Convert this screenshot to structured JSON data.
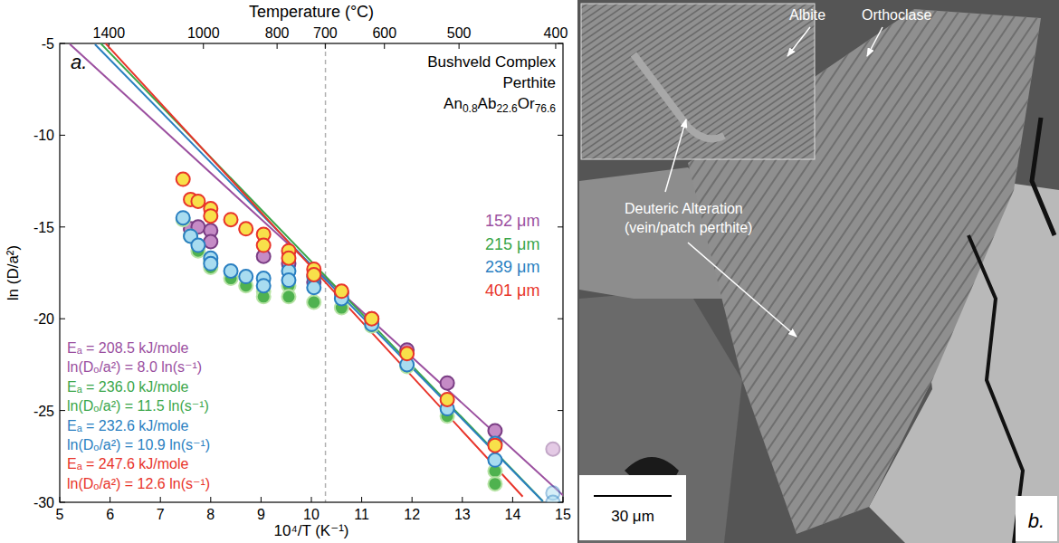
{
  "chart_data": {
    "type": "scatter",
    "panel": "a.",
    "x_label": "10⁴/T (K⁻¹)",
    "y_label": "ln (D/a²)",
    "x2_label": "Temperature (°C)",
    "xlim": [
      5,
      15
    ],
    "xticks": [
      5,
      6,
      7,
      8,
      9,
      10,
      11,
      12,
      13,
      14,
      15
    ],
    "ylim": [
      -30,
      -5
    ],
    "yticks": [
      -30,
      -25,
      -20,
      -15,
      -10,
      -5
    ],
    "x2ticks": [
      {
        "value": 5.977,
        "label": "1400"
      },
      {
        "value": 7.855,
        "label": "1000"
      },
      {
        "value": 9.319,
        "label": "800"
      },
      {
        "value": 10.276,
        "label": "700"
      },
      {
        "value": 11.452,
        "label": "600"
      },
      {
        "value": 12.934,
        "label": "500"
      },
      {
        "value": 14.855,
        "label": "400"
      }
    ],
    "vlines": [
      10.28
    ],
    "annotations": [
      "Bushveld Complex",
      "Perthite",
      "An0.8Ab22.6Or76.6"
    ],
    "legend": "right",
    "grid": false,
    "series": [
      {
        "name": "152 μm",
        "color": "#9b4f9f",
        "marker": "circle",
        "x": [
          7.6,
          7.75,
          8.0,
          8.0,
          9.05,
          9.55,
          10.05,
          10.6,
          11.2,
          11.9,
          12.7,
          13.65,
          14.8
        ],
        "values": [
          -15.1,
          -15.0,
          -15.2,
          -15.8,
          -16.6,
          -17.0,
          -18.0,
          -18.6,
          -20.0,
          -21.7,
          -23.5,
          -26.1,
          -27.1
        ],
        "fit_included": [
          true,
          true,
          true,
          true,
          true,
          true,
          true,
          true,
          true,
          true,
          true,
          true,
          false
        ],
        "fit_x": [
          5.2,
          15
        ],
        "fit_y": [
          -5.04,
          -29.62
        ],
        "fit_label": [
          "Eₐ = 208.5 kJ/mole",
          "ln(Dₒ/a²) = 8.0 ln(s⁻¹)"
        ]
      },
      {
        "name": "215 μm",
        "color": "#3aa64a",
        "marker": "circle",
        "x": [
          7.45,
          7.6,
          7.75,
          8.0,
          8.0,
          8.4,
          8.7,
          9.05,
          9.05,
          9.55,
          9.55,
          10.05,
          10.6,
          11.2,
          11.9,
          12.7,
          13.65,
          13.65
        ],
        "values": [
          -14.6,
          -15.5,
          -16.3,
          -16.9,
          -17.2,
          -17.8,
          -18.2,
          -18.5,
          -18.8,
          -18.2,
          -18.8,
          -19.1,
          -19.4,
          -20.4,
          -22.6,
          -25.3,
          -28.3,
          -29.0
        ],
        "fit_included": [
          true,
          true,
          true,
          true,
          true,
          true,
          true,
          true,
          true,
          true,
          true,
          true,
          true,
          true,
          true,
          true,
          true,
          true
        ],
        "fit_x": [
          5.8,
          14.6
        ],
        "fit_y": [
          -4.96,
          -29.94
        ],
        "fit_label": [
          "Eₐ = 236.0 kJ/mole",
          "ln(Dₒ/a²) = 11.5 ln(s⁻¹)"
        ]
      },
      {
        "name": "239 μm",
        "color": "#2a7fc1",
        "marker": "circle",
        "x": [
          7.45,
          7.6,
          7.75,
          8.0,
          8.0,
          8.4,
          8.7,
          9.05,
          9.05,
          9.55,
          9.55,
          10.05,
          10.05,
          10.6,
          11.2,
          11.9,
          12.7,
          13.65,
          13.65,
          14.8,
          14.8
        ],
        "values": [
          -14.5,
          -15.5,
          -16.0,
          -16.7,
          -17.0,
          -17.4,
          -17.7,
          -17.8,
          -18.2,
          -17.4,
          -17.9,
          -17.7,
          -18.3,
          -18.9,
          -20.3,
          -22.5,
          -24.9,
          -26.8,
          -27.7,
          -29.5,
          -30.0
        ],
        "fit_included": [
          true,
          true,
          true,
          true,
          true,
          true,
          true,
          true,
          true,
          true,
          true,
          true,
          true,
          true,
          true,
          true,
          true,
          true,
          true,
          false,
          false
        ],
        "fit_x": [
          5.7,
          14.6
        ],
        "fit_y": [
          -5.05,
          -29.95
        ],
        "fit_label": [
          "Eₐ = 232.6 kJ/mole",
          "ln(Dₒ/a²) = 10.9 ln(s⁻¹)"
        ]
      },
      {
        "name": "401 μm",
        "color": "#e8342a",
        "marker": "circle",
        "x": [
          7.45,
          7.6,
          7.75,
          8.0,
          8.0,
          8.4,
          8.7,
          9.05,
          9.05,
          9.55,
          9.55,
          10.05,
          10.05,
          10.6,
          11.2,
          11.9,
          12.7,
          13.65
        ],
        "values": [
          -12.4,
          -13.5,
          -13.6,
          -14.0,
          -14.4,
          -14.6,
          -15.1,
          -15.4,
          -16.0,
          -16.3,
          -16.7,
          -17.3,
          -17.6,
          -18.5,
          -20.0,
          -21.9,
          -24.4,
          -26.9
        ],
        "fit_included": [
          true,
          true,
          true,
          true,
          true,
          true,
          true,
          true,
          true,
          true,
          true,
          true,
          true,
          true,
          true,
          true,
          true,
          true
        ],
        "fit_x": [
          5.9,
          14.2
        ],
        "fit_y": [
          -4.97,
          -29.69
        ],
        "fit_label": [
          "Eₐ = 247.6 kJ/mole",
          "ln(Dₒ/a²) = 12.6 ln(s⁻¹)"
        ]
      }
    ]
  },
  "image_panel": {
    "panel": "b.",
    "labels": [
      "Albite",
      "Orthoclase"
    ],
    "annotation": [
      "Deuteric Alteration",
      "(vein/patch perthite)"
    ],
    "scale_bar": "30 μm"
  }
}
